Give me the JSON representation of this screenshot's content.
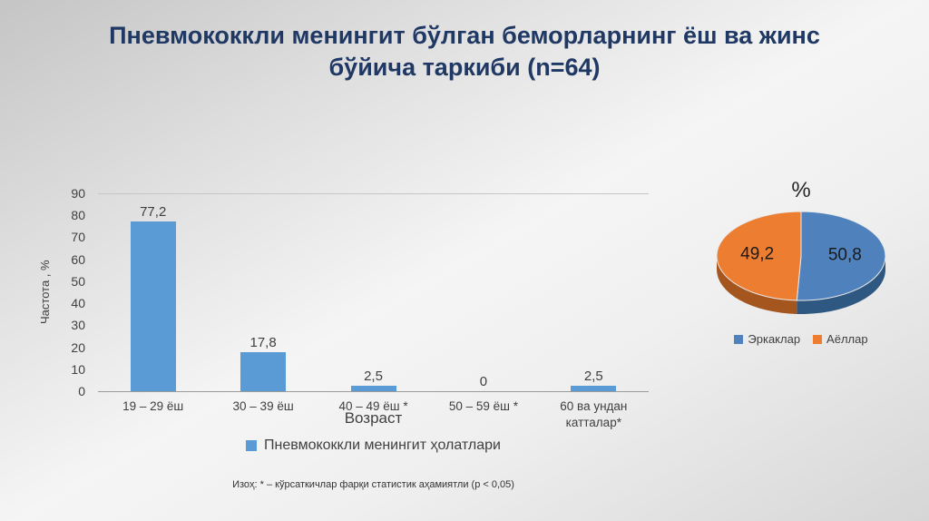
{
  "slide": {
    "title": "Пневмококкли менингит бўлган беморларнинг ёш ва жинс бўйича таркиби (n=64)",
    "footnote": "Изоҳ: * – кўрсаткичлар фарқи статистик аҳамиятли (p < 0,05)",
    "title_color": "#1f3864"
  },
  "chart_data": [
    {
      "type": "bar",
      "title": "",
      "categories": [
        "19 – 29 ёш",
        "30 – 39 ёш",
        "40 – 49 ёш *",
        "50 – 59 ёш *",
        "60 ва ундан катталар*"
      ],
      "values": [
        77.2,
        17.8,
        2.5,
        0,
        2.5
      ],
      "value_labels": [
        "77,2",
        "17,8",
        "2,5",
        "0",
        "2,5"
      ],
      "xlabel": "Возраст",
      "ylabel": "Частота , %",
      "ylim": [
        0,
        90
      ],
      "ytick_step": 10,
      "grid": false,
      "legend": [
        "Пневмококкли менингит ҳолатлари"
      ],
      "legend_position": "bottom",
      "bar_color": "#5b9bd5"
    },
    {
      "type": "pie",
      "style": "3d",
      "title": "%",
      "labels": [
        "Эркаклар",
        "Аёллар"
      ],
      "values": [
        50.8,
        49.2
      ],
      "value_labels": [
        "50,8",
        "49,2"
      ],
      "colors": [
        "#4f81bd",
        "#ed7d31"
      ],
      "side_colors": [
        "#2e5881",
        "#a4561e"
      ],
      "legend_position": "bottom"
    }
  ]
}
